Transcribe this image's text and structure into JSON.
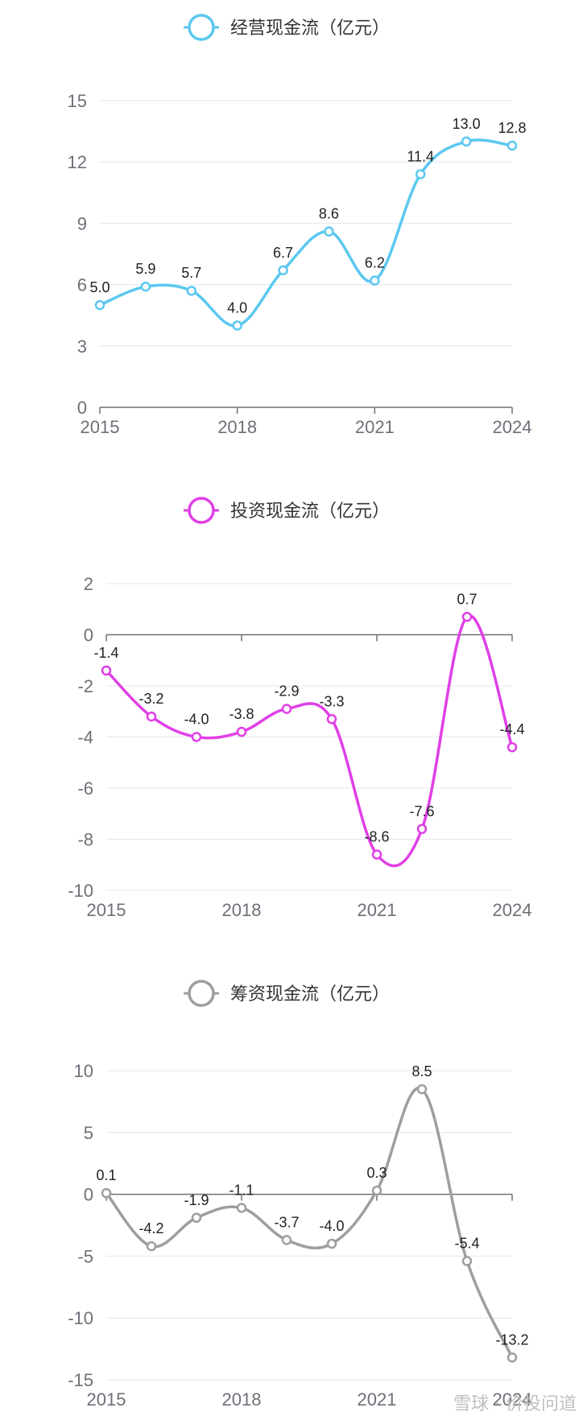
{
  "chart_data": [
    {
      "type": "line",
      "legend": "经营现金流（亿元）",
      "legend_position": "top-center",
      "color": "#5bc8f0",
      "x": [
        2015,
        2016,
        2017,
        2018,
        2019,
        2020,
        2021,
        2022,
        2023,
        2024
      ],
      "xticks": [
        "2015",
        "2018",
        "2021",
        "2024"
      ],
      "values": [
        5.0,
        5.9,
        5.7,
        4.0,
        6.7,
        8.6,
        6.2,
        11.4,
        13.0,
        12.8
      ],
      "labels": [
        "5.0",
        "5.9",
        "5.7",
        "4.0",
        "6.7",
        "8.6",
        "6.2",
        "11.4",
        "13.0",
        "12.8"
      ],
      "yticks": [
        "0",
        "3",
        "6",
        "9",
        "12",
        "15"
      ],
      "ylim": [
        0,
        15
      ],
      "smooth": true,
      "grid": true
    },
    {
      "type": "line",
      "legend": "投资现金流（亿元）",
      "legend_position": "top-center",
      "color": "#e03fe6",
      "x": [
        2015,
        2016,
        2017,
        2018,
        2019,
        2020,
        2021,
        2022,
        2023,
        2024
      ],
      "xticks": [
        "2015",
        "2018",
        "2021",
        "2024"
      ],
      "values": [
        -1.4,
        -3.2,
        -4.0,
        -3.8,
        -2.9,
        -3.3,
        -8.6,
        -7.6,
        0.7,
        -4.4
      ],
      "labels": [
        "-1.4",
        "-3.2",
        "-4.0",
        "-3.8",
        "-2.9",
        "-3.3",
        "-8.6",
        "-7.6",
        "0.7",
        "-4.4"
      ],
      "yticks": [
        "-10",
        "-8",
        "-6",
        "-4",
        "-2",
        "0",
        "2"
      ],
      "ylim": [
        -10,
        2
      ],
      "smooth": true,
      "grid": true
    },
    {
      "type": "line",
      "legend": "筹资现金流（亿元）",
      "legend_position": "top-center",
      "color": "#9e9e9e",
      "x": [
        2015,
        2016,
        2017,
        2018,
        2019,
        2020,
        2021,
        2022,
        2023,
        2024
      ],
      "xticks": [
        "2015",
        "2018",
        "2021",
        "2024"
      ],
      "values": [
        0.1,
        -4.2,
        -1.9,
        -1.1,
        -3.7,
        -4.0,
        0.3,
        8.5,
        -5.4,
        -13.2
      ],
      "labels": [
        "0.1",
        "-4.2",
        "-1.9",
        "-1.1",
        "-3.7",
        "-4.0",
        "0.3",
        "8.5",
        "-5.4",
        "-13.2"
      ],
      "yticks": [
        "-15",
        "-10",
        "-5",
        "0",
        "5",
        "10"
      ],
      "ylim": [
        -15,
        10
      ],
      "smooth": true,
      "grid": true
    }
  ],
  "watermark": "雪球 · 价投问道"
}
